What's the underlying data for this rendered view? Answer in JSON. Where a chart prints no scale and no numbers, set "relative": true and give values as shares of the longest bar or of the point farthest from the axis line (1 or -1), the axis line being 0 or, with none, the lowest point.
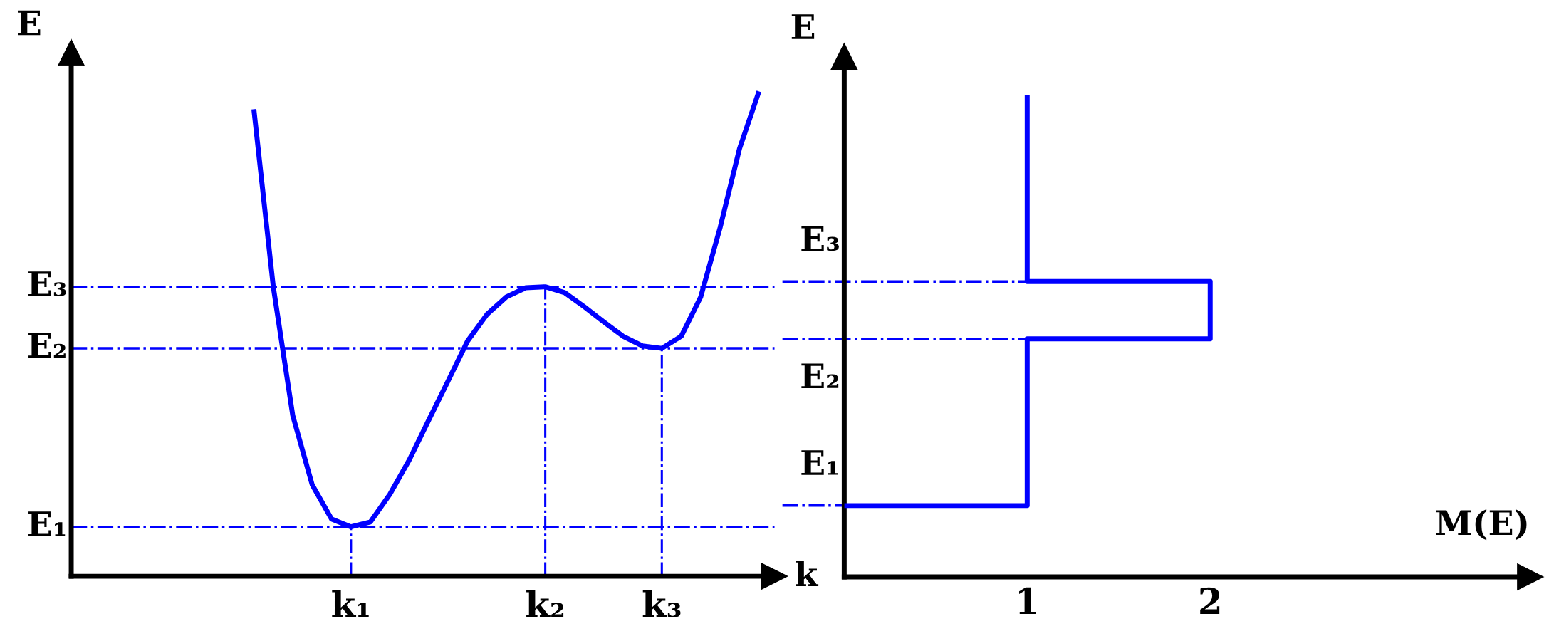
{
  "chart_data": [
    {
      "type": "line",
      "relative": true,
      "xlabel": "k",
      "ylabel": "E",
      "tick_labels": "x",
      "line_style": "solid",
      "marker": "none",
      "categories": [
        null,
        null,
        null,
        null,
        null,
        "k₁",
        null,
        null,
        null,
        null,
        null,
        null,
        null,
        null,
        null,
        "k₂",
        null,
        null,
        null,
        null,
        null,
        "k₃",
        null,
        null,
        null,
        null,
        null
      ],
      "series": [
        {
          "color": "#0000ff",
          "values": [
            0.963,
            0.597,
            0.332,
            0.189,
            0.118,
            0.102,
            0.112,
            0.169,
            0.24,
            0.322,
            0.403,
            0.485,
            0.54,
            0.576,
            0.595,
            0.597,
            0.585,
            0.556,
            0.525,
            0.495,
            0.475,
            0.47,
            0.495,
            0.576,
            0.719,
            0.882,
            1.0
          ]
        }
      ],
      "ref_lines": [
        {
          "axis": "y",
          "value": 0.102,
          "label": "E₁",
          "color": "#0000ff",
          "line_style": "dashdot"
        },
        {
          "axis": "y",
          "value": 0.47,
          "label": "E₂",
          "color": "#0000ff",
          "line_style": "dashdot"
        },
        {
          "axis": "y",
          "value": 0.597,
          "label": "E₃",
          "color": "#0000ff",
          "line_style": "dashdot"
        },
        {
          "axis": "x",
          "value": "k₁",
          "label": null,
          "color": "#0000ff",
          "line_style": "dashdot"
        },
        {
          "axis": "x",
          "value": "k₂",
          "label": null,
          "color": "#0000ff",
          "line_style": "dashdot"
        },
        {
          "axis": "x",
          "value": "k₃",
          "label": null,
          "color": "#0000ff",
          "line_style": "dashdot"
        }
      ]
    },
    {
      "type": "line",
      "relative": true,
      "xlabel": "M(E)",
      "ylabel": "E",
      "tick_labels": "x",
      "line_style": "solid",
      "marker": "none",
      "xlim": [
        0,
        3.75
      ],
      "xticks": [
        1,
        2
      ],
      "series": [
        {
          "color": "#0000ff",
          "x": [
            0,
            1,
            1,
            2,
            2,
            1,
            1
          ],
          "values": [
            0.148,
            0.148,
            0.494,
            0.494,
            0.613,
            0.613,
            1.0
          ]
        }
      ],
      "ref_lines": [
        {
          "axis": "y",
          "value": 0.148,
          "label": "E₁",
          "color": "#0000ff",
          "line_style": "dashdot"
        },
        {
          "axis": "y",
          "value": 0.494,
          "label": "E₂",
          "color": "#0000ff",
          "line_style": "dashdot"
        },
        {
          "axis": "y",
          "value": 0.613,
          "label": "E₃",
          "color": "#0000ff",
          "line_style": "dashdot"
        }
      ]
    }
  ]
}
